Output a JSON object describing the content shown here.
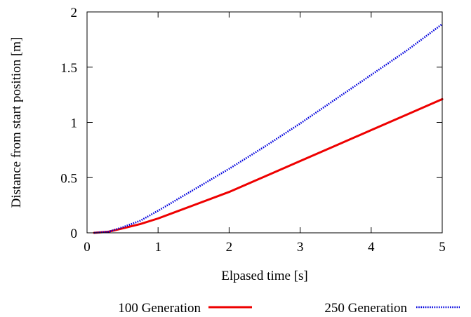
{
  "chart_data": {
    "type": "line",
    "title": "",
    "xlabel": "Elpased time [s]",
    "ylabel": "Distance from start position [m]",
    "xlim": [
      0,
      5
    ],
    "ylim": [
      0,
      2
    ],
    "xticks": [
      0,
      1,
      2,
      3,
      4,
      5
    ],
    "xtick_labels": [
      "0",
      "1",
      "2",
      "3",
      "4",
      "5"
    ],
    "yticks": [
      0,
      0.5,
      1,
      1.5,
      2
    ],
    "ytick_labels": [
      "0",
      "0.5",
      "1",
      "1.5",
      "2"
    ],
    "grid": false,
    "legend_position": "bottom",
    "series": [
      {
        "name": "100 Generation",
        "color": "#ee0000",
        "style": "solid",
        "x": [
          0.1,
          0.3,
          0.5,
          0.75,
          1.0,
          1.5,
          2.0,
          2.5,
          3.0,
          3.5,
          4.0,
          4.5,
          5.0
        ],
        "y": [
          0.0,
          0.01,
          0.04,
          0.08,
          0.13,
          0.25,
          0.37,
          0.51,
          0.65,
          0.79,
          0.93,
          1.07,
          1.21
        ]
      },
      {
        "name": "250 Generation",
        "color": "#0000dd",
        "style": "dotted",
        "x": [
          0.1,
          0.3,
          0.5,
          0.75,
          1.0,
          1.5,
          2.0,
          2.5,
          3.0,
          3.5,
          4.0,
          4.5,
          5.0
        ],
        "y": [
          0.0,
          0.01,
          0.05,
          0.11,
          0.2,
          0.39,
          0.58,
          0.78,
          0.99,
          1.21,
          1.43,
          1.65,
          1.89
        ]
      }
    ]
  }
}
